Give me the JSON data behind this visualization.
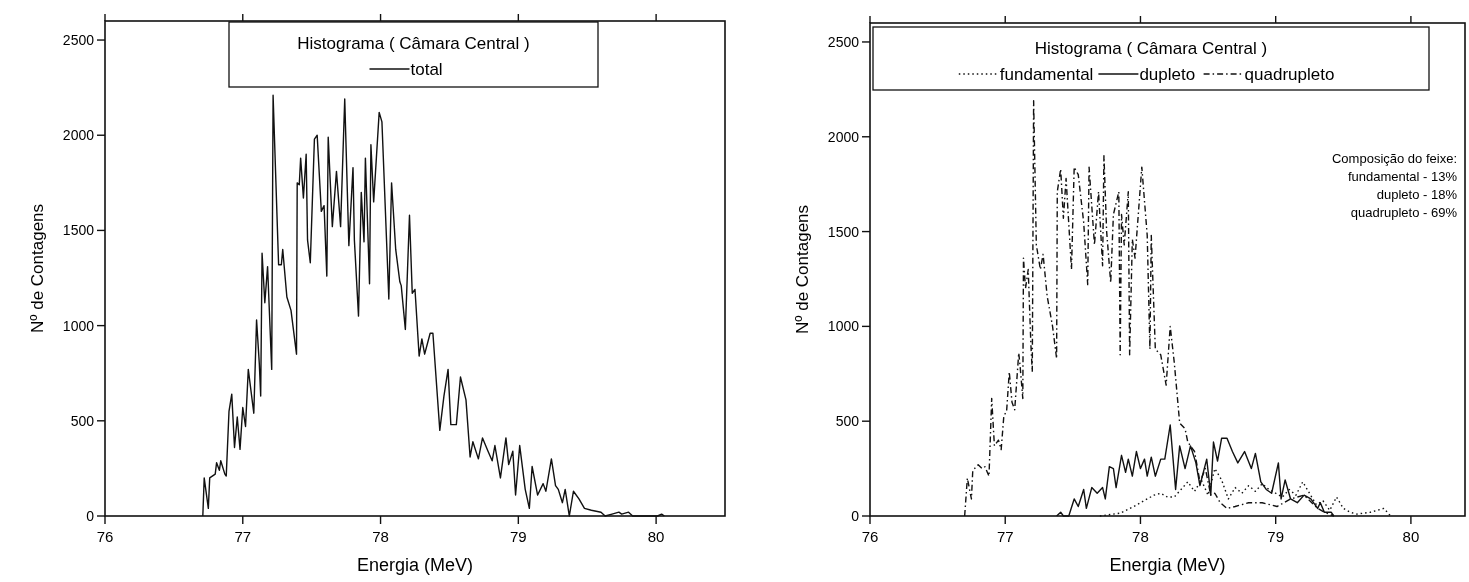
{
  "chart_data": [
    {
      "type": "line",
      "legend_title": "Histograma ( Câmara Central )",
      "xlabel": "Energia (MeV)",
      "ylabel": "Nº de Contagens",
      "xlim": [
        76,
        80.5
      ],
      "ylim": [
        0,
        2600
      ],
      "xticks": [
        76,
        77,
        78,
        79,
        80
      ],
      "yticks": [
        0,
        500,
        1000,
        1500,
        2000,
        2500
      ],
      "grid": false,
      "legend": "top",
      "series": [
        {
          "name": "total",
          "color": "#111111",
          "line_style": "solid",
          "x": [
            76.71,
            76.72,
            76.75,
            76.76,
            76.8,
            76.81,
            76.83,
            76.84,
            76.87,
            76.88,
            76.9,
            76.92,
            76.94,
            76.96,
            76.98,
            77.0,
            77.02,
            77.04,
            77.08,
            77.1,
            77.12,
            77.13,
            77.14,
            77.16,
            77.18,
            77.21,
            77.22,
            77.26,
            77.28,
            77.29,
            77.32,
            77.35,
            77.39,
            77.395,
            77.41,
            77.42,
            77.44,
            77.46,
            77.47,
            77.49,
            77.52,
            77.54,
            77.57,
            77.59,
            77.61,
            77.62,
            77.65,
            77.68,
            77.71,
            77.74,
            77.77,
            77.8,
            77.81,
            77.84,
            77.86,
            77.88,
            77.89,
            77.92,
            77.93,
            77.95,
            77.99,
            78.01,
            78.06,
            78.08,
            78.11,
            78.14,
            78.15,
            78.18,
            78.21,
            78.23,
            78.25,
            78.28,
            78.3,
            78.32,
            78.36,
            78.38,
            78.43,
            78.46,
            78.49,
            78.51,
            78.55,
            78.58,
            78.62,
            78.65,
            78.67,
            78.71,
            78.74,
            78.78,
            78.81,
            78.83,
            78.87,
            78.91,
            78.93,
            78.96,
            78.98,
            79.01,
            79.05,
            79.08,
            79.1,
            79.14,
            79.18,
            79.2,
            79.24,
            79.27,
            79.29,
            79.32,
            79.34,
            79.37,
            79.4,
            79.44,
            79.48,
            79.53,
            79.6,
            79.63,
            79.68,
            79.73,
            79.75,
            79.8,
            79.83,
            80.01,
            80.04,
            80.06
          ],
          "values": [
            0,
            200,
            40,
            200,
            220,
            280,
            240,
            290,
            220,
            210,
            550,
            640,
            360,
            520,
            350,
            570,
            470,
            770,
            540,
            1030,
            800,
            630,
            1380,
            1120,
            1310,
            770,
            2210,
            1320,
            1320,
            1400,
            1150,
            1080,
            850,
            1750,
            1740,
            1880,
            1670,
            1900,
            1450,
            1330,
            1980,
            2000,
            1600,
            1630,
            1260,
            1990,
            1520,
            1810,
            1520,
            2190,
            1420,
            1830,
            1450,
            1050,
            1700,
            1440,
            1880,
            1220,
            1950,
            1650,
            2120,
            2070,
            1140,
            1750,
            1400,
            1230,
            1210,
            980,
            1580,
            1170,
            1190,
            840,
            930,
            850,
            960,
            960,
            450,
            630,
            770,
            480,
            480,
            730,
            610,
            310,
            390,
            300,
            410,
            340,
            290,
            370,
            200,
            410,
            270,
            340,
            110,
            370,
            140,
            40,
            260,
            110,
            170,
            130,
            300,
            160,
            140,
            70,
            140,
            0,
            130,
            90,
            40,
            30,
            20,
            0,
            10,
            20,
            10,
            20,
            0,
            0,
            10,
            0
          ]
        }
      ]
    },
    {
      "type": "line",
      "legend_title": "Histograma ( Câmara Central )",
      "xlabel": "Energia (MeV)",
      "ylabel": "Nº de Contagens",
      "xlim": [
        76,
        80.4
      ],
      "ylim": [
        0,
        2600
      ],
      "xticks": [
        76,
        77,
        78,
        79,
        80
      ],
      "yticks": [
        0,
        500,
        1000,
        1500,
        2000,
        2500
      ],
      "grid": false,
      "legend": "top",
      "annotations": [
        "Composição do feixe:",
        "fundamental - 13%",
        "dupleto - 18%",
        "quadrupleto - 69%"
      ],
      "series": [
        {
          "name": "fundamental",
          "color": "#111111",
          "line_style": "dotted",
          "x": [
            77.7,
            77.85,
            77.95,
            78.0,
            78.05,
            78.1,
            78.15,
            78.2,
            78.25,
            78.3,
            78.35,
            78.4,
            78.45,
            78.5,
            78.55,
            78.6,
            78.65,
            78.7,
            78.75,
            78.8,
            78.85,
            78.9,
            78.95,
            79.0,
            79.05,
            79.1,
            79.15,
            79.2,
            79.25,
            79.3,
            79.35,
            79.4,
            79.45,
            79.5,
            79.55,
            79.6,
            79.7,
            79.8,
            79.85
          ],
          "values": [
            0,
            15,
            50,
            70,
            90,
            110,
            120,
            100,
            100,
            140,
            180,
            130,
            190,
            110,
            250,
            190,
            90,
            150,
            120,
            160,
            130,
            170,
            140,
            120,
            100,
            140,
            110,
            180,
            120,
            60,
            80,
            30,
            100,
            40,
            20,
            10,
            20,
            40,
            0
          ]
        },
        {
          "name": "dupleto",
          "color": "#111111",
          "line_style": "solid",
          "x": [
            77.38,
            77.41,
            77.43,
            77.47,
            77.51,
            77.54,
            77.58,
            77.6,
            77.64,
            77.68,
            77.72,
            77.74,
            77.77,
            77.8,
            77.82,
            77.86,
            77.89,
            77.91,
            77.94,
            77.97,
            78.0,
            78.03,
            78.05,
            78.08,
            78.11,
            78.15,
            78.18,
            78.22,
            78.26,
            78.29,
            78.33,
            78.37,
            78.41,
            78.44,
            78.49,
            78.52,
            78.54,
            78.57,
            78.6,
            78.64,
            78.68,
            78.72,
            78.77,
            78.82,
            78.85,
            78.89,
            78.93,
            78.97,
            79.02,
            79.04,
            79.07,
            79.11,
            79.16,
            79.21,
            79.26,
            79.31,
            79.33,
            79.36,
            79.41,
            79.43
          ],
          "values": [
            0,
            20,
            0,
            0,
            90,
            50,
            140,
            40,
            150,
            120,
            150,
            90,
            260,
            250,
            150,
            320,
            230,
            300,
            210,
            340,
            250,
            300,
            210,
            310,
            210,
            300,
            300,
            480,
            140,
            370,
            250,
            370,
            280,
            160,
            300,
            110,
            390,
            290,
            410,
            410,
            340,
            280,
            340,
            250,
            330,
            180,
            140,
            120,
            280,
            90,
            190,
            90,
            70,
            110,
            90,
            40,
            70,
            20,
            20,
            0
          ]
        },
        {
          "name": "quadrupleto",
          "color": "#111111",
          "line_style": "dashed",
          "x": [
            76.7,
            76.72,
            76.75,
            76.76,
            76.8,
            76.83,
            76.85,
            76.88,
            76.9,
            76.92,
            76.95,
            76.97,
            76.99,
            77.01,
            77.03,
            77.05,
            77.07,
            77.1,
            77.11,
            77.13,
            77.135,
            77.15,
            77.17,
            77.19,
            77.2,
            77.21,
            77.23,
            77.26,
            77.28,
            77.31,
            77.35,
            77.38,
            77.385,
            77.41,
            77.43,
            77.45,
            77.49,
            77.51,
            77.54,
            77.58,
            77.61,
            77.62,
            77.66,
            77.69,
            77.72,
            77.73,
            77.75,
            77.78,
            77.8,
            77.84,
            77.85,
            77.86,
            77.88,
            77.91,
            77.92,
            77.94,
            77.96,
            78.01,
            78.05,
            78.07,
            78.08,
            78.11,
            78.15,
            78.19,
            78.22,
            78.25,
            78.29,
            78.33,
            78.35,
            78.4,
            78.44,
            78.48,
            78.52,
            78.55,
            78.59,
            78.64,
            78.7,
            78.8,
            78.9,
            79.01,
            79.11,
            79.21,
            79.31,
            79.36,
            79.43
          ],
          "values": [
            0,
            200,
            90,
            240,
            270,
            250,
            260,
            210,
            620,
            370,
            400,
            350,
            530,
            550,
            760,
            600,
            560,
            860,
            790,
            620,
            1360,
            1200,
            1300,
            900,
            760,
            2190,
            1430,
            1300,
            1380,
            1160,
            1000,
            830,
            1710,
            1830,
            1570,
            1780,
            1300,
            1840,
            1800,
            1550,
            1220,
            1840,
            1430,
            1710,
            1320,
            1900,
            1500,
            1230,
            1590,
            1710,
            850,
            1590,
            1430,
            1710,
            850,
            1460,
            1360,
            1840,
            1480,
            880,
            1480,
            880,
            850,
            690,
            1000,
            810,
            490,
            460,
            390,
            340,
            180,
            250,
            110,
            120,
            70,
            40,
            50,
            70,
            70,
            50,
            90,
            110,
            40,
            20,
            0
          ]
        }
      ]
    }
  ]
}
